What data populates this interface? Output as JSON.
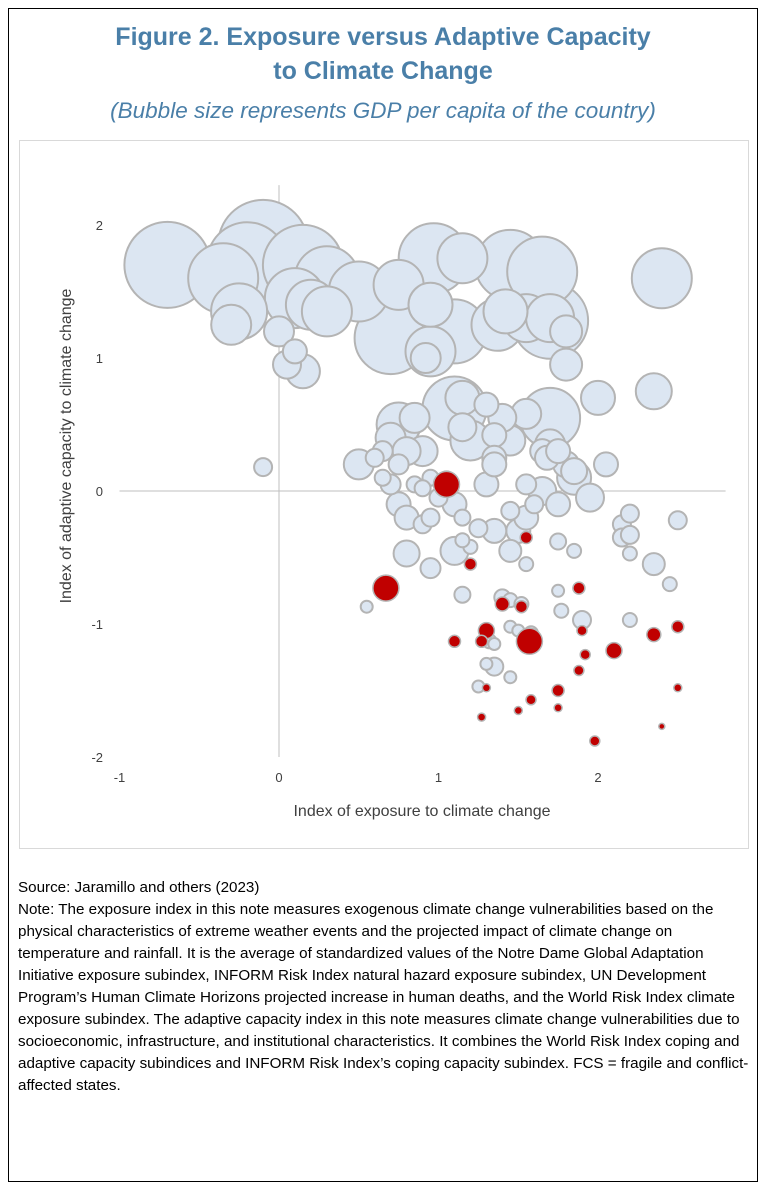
{
  "figure": {
    "title_line1": "Figure 2. Exposure versus Adaptive Capacity",
    "title_line2": "to Climate Change",
    "subtitle": "(Bubble size represents GDP per capita of the country)"
  },
  "notes": {
    "source": "Source: Jaramillo and others (2023)",
    "note": "Note: The exposure index in this note measures exogenous climate change vulnerabilities based on the physical characteristics of extreme weather events and the projected impact of climate change on temperature and rainfall. It is the average of standardized values of the Notre Dame Global Adaptation Initiative exposure subindex, INFORM Risk Index natural hazard exposure subindex, UN Development Program’s Human Climate Horizons projected increase in human deaths, and the World Risk Index climate exposure subindex. The adaptive capacity index in this note measures climate change vulnerabilities due to socioeconomic, infrastructure, and institutional characteristics. It combines the World Risk Index coping and adaptive capacity subindices and INFORM Risk Index’s coping capacity subindex. FCS = fragile and conflict-affected states."
  },
  "colors": {
    "bubble_fill": "#dce6f2",
    "bubble_stroke": "#b4b4b4",
    "fcs_fill": "#c00000",
    "fcs_stroke": "#b4b4b4",
    "title": "#4a7fa8"
  },
  "chart_data": {
    "type": "scatter",
    "title": "",
    "xlabel": "Index of exposure to climate change",
    "ylabel": "Index of adaptive capacity to climate change",
    "xlim": [
      -1,
      2.8
    ],
    "ylim": [
      -2,
      2.3
    ],
    "x_ticks": [
      -1,
      0,
      1,
      2
    ],
    "x_tick_labels": [
      "-1",
      "0",
      "1",
      "2"
    ],
    "y_ticks": [
      -2,
      -1,
      0,
      1,
      2
    ],
    "y_tick_labels": [
      "-2",
      "-1",
      "0",
      "1",
      "2"
    ],
    "size_meaning": "GDP per capita of the country (relative)",
    "series": [
      {
        "key": "other",
        "points": [
          [
            -0.7,
            1.7,
            43
          ],
          [
            -0.35,
            1.6,
            35
          ],
          [
            -0.2,
            1.72,
            40
          ],
          [
            -0.1,
            1.85,
            45
          ],
          [
            0.15,
            1.7,
            40
          ],
          [
            0.3,
            1.6,
            32
          ],
          [
            0.2,
            1.4,
            25
          ],
          [
            0.1,
            1.45,
            30
          ],
          [
            -0.25,
            1.35,
            28
          ],
          [
            -0.3,
            1.25,
            20
          ],
          [
            0,
            1.2,
            15
          ],
          [
            0.1,
            1.05,
            12
          ],
          [
            0.05,
            0.95,
            14
          ],
          [
            0.15,
            0.9,
            17
          ],
          [
            0.3,
            1.35,
            25
          ],
          [
            0.5,
            1.5,
            30
          ],
          [
            0.75,
            1.55,
            25
          ],
          [
            0.7,
            1.15,
            36
          ],
          [
            0.95,
            1.4,
            22
          ],
          [
            1.1,
            1.2,
            32
          ],
          [
            0.95,
            1.05,
            25
          ],
          [
            0.92,
            1.0,
            15
          ],
          [
            1.15,
            1.75,
            25
          ],
          [
            0.97,
            1.75,
            35
          ],
          [
            1.45,
            1.7,
            35
          ],
          [
            1.65,
            1.65,
            35
          ],
          [
            1.42,
            1.35,
            22
          ],
          [
            1.37,
            1.25,
            26
          ],
          [
            1.55,
            1.3,
            24
          ],
          [
            1.7,
            1.3,
            24
          ],
          [
            1.7,
            1.28,
            38
          ],
          [
            1.8,
            1.2,
            16
          ],
          [
            1.8,
            0.95,
            16
          ],
          [
            2.4,
            1.6,
            30
          ],
          [
            2.35,
            0.75,
            18
          ],
          [
            1.15,
            0.7,
            17
          ],
          [
            1.1,
            0.62,
            32
          ],
          [
            1.3,
            0.65,
            12
          ],
          [
            1.4,
            0.55,
            14
          ],
          [
            1.7,
            0.55,
            30
          ],
          [
            1.55,
            0.58,
            15
          ],
          [
            2.0,
            0.7,
            17
          ],
          [
            0.75,
            0.5,
            22
          ],
          [
            0.85,
            0.55,
            15
          ],
          [
            1.15,
            0.48,
            14
          ],
          [
            1.2,
            0.38,
            20
          ],
          [
            1.35,
            0.42,
            12
          ],
          [
            1.45,
            0.38,
            15
          ],
          [
            1.35,
            0.25,
            12
          ],
          [
            1.65,
            0.3,
            12
          ],
          [
            1.68,
            0.25,
            12
          ],
          [
            1.7,
            0.35,
            15
          ],
          [
            1.75,
            0.3,
            12
          ],
          [
            1.8,
            0.2,
            13
          ],
          [
            1.85,
            0.15,
            13
          ],
          [
            1.85,
            0.1,
            17
          ],
          [
            2.05,
            0.2,
            12
          ],
          [
            0.9,
            0.3,
            15
          ],
          [
            0.7,
            0.4,
            15
          ],
          [
            0.65,
            0.3,
            10
          ],
          [
            0.8,
            0.3,
            14
          ],
          [
            0.75,
            0.2,
            10
          ],
          [
            0.5,
            0.2,
            15
          ],
          [
            0.6,
            0.25,
            9
          ],
          [
            -0.1,
            0.18,
            9
          ],
          [
            0.65,
            0.1,
            8
          ],
          [
            0.7,
            0.05,
            10
          ],
          [
            0.85,
            0.05,
            8
          ],
          [
            0.95,
            0.1,
            8
          ],
          [
            0.9,
            0.02,
            8
          ],
          [
            1.05,
            0.08,
            9
          ],
          [
            1.3,
            0.05,
            12
          ],
          [
            1.35,
            0.2,
            12
          ],
          [
            1.55,
            0.05,
            10
          ],
          [
            1.65,
            0.0,
            14
          ],
          [
            1.75,
            -0.1,
            12
          ],
          [
            1.95,
            -0.05,
            14
          ],
          [
            0.75,
            -0.1,
            12
          ],
          [
            0.8,
            -0.2,
            12
          ],
          [
            0.9,
            -0.25,
            9
          ],
          [
            0.95,
            -0.2,
            9
          ],
          [
            1.0,
            -0.05,
            9
          ],
          [
            1.1,
            -0.1,
            12
          ],
          [
            1.15,
            -0.2,
            8
          ],
          [
            1.25,
            -0.28,
            9
          ],
          [
            1.45,
            -0.15,
            9
          ],
          [
            1.5,
            -0.3,
            12
          ],
          [
            1.55,
            -0.2,
            12
          ],
          [
            1.6,
            -0.1,
            9
          ],
          [
            2.15,
            -0.25,
            9
          ],
          [
            2.2,
            -0.17,
            9
          ],
          [
            2.15,
            -0.35,
            9
          ],
          [
            2.2,
            -0.33,
            9
          ],
          [
            2.2,
            -0.47,
            7
          ],
          [
            2.5,
            -0.22,
            9
          ],
          [
            2.35,
            -0.55,
            11
          ],
          [
            2.45,
            -0.7,
            7
          ],
          [
            0.8,
            -0.47,
            13
          ],
          [
            0.95,
            -0.58,
            10
          ],
          [
            1.1,
            -0.45,
            14
          ],
          [
            1.2,
            -0.42,
            7
          ],
          [
            1.15,
            -0.37,
            7
          ],
          [
            1.35,
            -0.3,
            12
          ],
          [
            1.45,
            -0.45,
            11
          ],
          [
            1.55,
            -0.55,
            7
          ],
          [
            1.75,
            -0.38,
            8
          ],
          [
            1.85,
            -0.45,
            7
          ],
          [
            0.55,
            -0.87,
            6
          ],
          [
            1.15,
            -0.78,
            8
          ],
          [
            1.4,
            -0.8,
            8
          ],
          [
            1.45,
            -0.82,
            7
          ],
          [
            1.52,
            -0.85,
            7
          ],
          [
            1.75,
            -0.75,
            6
          ],
          [
            1.77,
            -0.9,
            7
          ],
          [
            1.9,
            -0.97,
            9
          ],
          [
            2.2,
            -0.97,
            7
          ],
          [
            1.45,
            -1.02,
            6
          ],
          [
            1.5,
            -1.05,
            6
          ],
          [
            1.55,
            -1.1,
            6
          ],
          [
            1.32,
            -1.13,
            7
          ],
          [
            1.35,
            -1.15,
            6
          ],
          [
            1.3,
            -1.3,
            6
          ],
          [
            1.35,
            -1.32,
            9
          ],
          [
            1.45,
            -1.4,
            6
          ],
          [
            1.25,
            -1.47,
            6
          ],
          [
            1.58,
            -1.07,
            7
          ]
        ]
      },
      {
        "key": "fcs",
        "points": [
          [
            1.05,
            0.05,
            13
          ],
          [
            0.67,
            -0.73,
            13
          ],
          [
            1.57,
            -1.13,
            13
          ],
          [
            1.55,
            -0.35,
            6
          ],
          [
            1.4,
            -0.85,
            7
          ],
          [
            1.52,
            -0.87,
            6
          ],
          [
            1.2,
            -0.55,
            6
          ],
          [
            1.3,
            -1.05,
            8
          ],
          [
            1.1,
            -1.13,
            6
          ],
          [
            1.27,
            -1.13,
            6
          ],
          [
            1.88,
            -0.73,
            6
          ],
          [
            1.9,
            -1.05,
            5
          ],
          [
            1.92,
            -1.23,
            5
          ],
          [
            1.88,
            -1.35,
            5
          ],
          [
            2.1,
            -1.2,
            8
          ],
          [
            2.35,
            -1.08,
            7
          ],
          [
            2.5,
            -1.02,
            6
          ],
          [
            2.5,
            -1.48,
            4
          ],
          [
            2.4,
            -1.77,
            3
          ],
          [
            1.98,
            -1.88,
            5
          ],
          [
            1.75,
            -1.5,
            6
          ],
          [
            1.75,
            -1.63,
            4
          ],
          [
            1.58,
            -1.57,
            5
          ],
          [
            1.5,
            -1.65,
            4
          ],
          [
            1.3,
            -1.48,
            4
          ],
          [
            1.27,
            -1.7,
            4
          ]
        ]
      }
    ]
  }
}
